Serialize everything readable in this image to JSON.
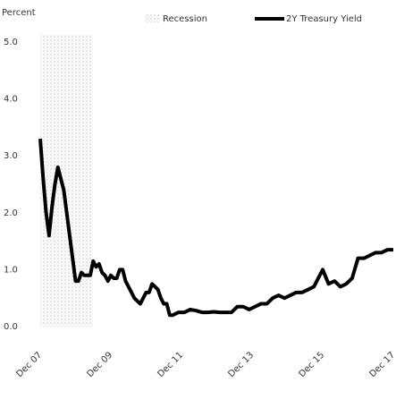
{
  "chart_data": {
    "type": "line",
    "y_label": "Percent",
    "recession": {
      "name": "Recession",
      "start": "2007-12",
      "end": "2009-06",
      "color": "#d0d0d0"
    },
    "x": [
      "2007-12",
      "2008-01",
      "2008-02",
      "2008-03",
      "2008-04",
      "2008-05",
      "2008-06",
      "2008-07",
      "2008-08",
      "2008-09",
      "2008-10",
      "2008-11",
      "2008-12",
      "2009-01",
      "2009-02",
      "2009-03",
      "2009-04",
      "2009-05",
      "2009-06",
      "2009-07",
      "2009-08",
      "2009-09",
      "2009-10",
      "2009-11",
      "2009-12",
      "2010-01",
      "2010-02",
      "2010-03",
      "2010-04",
      "2010-05",
      "2010-06",
      "2010-07",
      "2010-08",
      "2010-09",
      "2010-10",
      "2010-11",
      "2010-12",
      "2011-01",
      "2011-02",
      "2011-03",
      "2011-04",
      "2011-05",
      "2011-06",
      "2011-07",
      "2011-08",
      "2011-09",
      "2011-11",
      "2012-01",
      "2012-03",
      "2012-05",
      "2012-07",
      "2012-09",
      "2012-11",
      "2013-01",
      "2013-03",
      "2013-05",
      "2013-07",
      "2013-09",
      "2013-11",
      "2014-01",
      "2014-03",
      "2014-05",
      "2014-07",
      "2014-09",
      "2014-11",
      "2015-01",
      "2015-03",
      "2015-05",
      "2015-07",
      "2015-09",
      "2015-11",
      "2015-12",
      "2016-02",
      "2016-04",
      "2016-06",
      "2016-08",
      "2016-10",
      "2016-12",
      "2017-02",
      "2017-04",
      "2017-06",
      "2017-08",
      "2017-10",
      "2017-12"
    ],
    "series": [
      {
        "name": "2Y Treasury Yield",
        "color": "#000000",
        "values": [
          3.3,
          2.6,
          2.0,
          1.6,
          2.1,
          2.5,
          2.8,
          2.6,
          2.4,
          2.0,
          1.6,
          1.2,
          0.8,
          0.8,
          0.95,
          0.9,
          0.9,
          0.9,
          1.15,
          1.05,
          1.1,
          0.95,
          0.9,
          0.8,
          0.9,
          0.85,
          0.85,
          1.0,
          1.0,
          0.8,
          0.7,
          0.6,
          0.5,
          0.45,
          0.4,
          0.5,
          0.6,
          0.6,
          0.75,
          0.7,
          0.65,
          0.5,
          0.4,
          0.4,
          0.2,
          0.2,
          0.25,
          0.25,
          0.3,
          0.28,
          0.25,
          0.25,
          0.26,
          0.25,
          0.25,
          0.25,
          0.35,
          0.35,
          0.3,
          0.35,
          0.4,
          0.4,
          0.5,
          0.55,
          0.5,
          0.55,
          0.6,
          0.6,
          0.65,
          0.7,
          0.9,
          1.0,
          0.75,
          0.8,
          0.7,
          0.75,
          0.85,
          1.2,
          1.2,
          1.25,
          1.3,
          1.3,
          1.35,
          1.35
        ]
      }
    ],
    "xticks": [
      {
        "value": "2007-12",
        "label": "Dec 07"
      },
      {
        "value": "2009-12",
        "label": "Dec 09"
      },
      {
        "value": "2011-12",
        "label": "Dec 11"
      },
      {
        "value": "2013-12",
        "label": "Dec 13"
      },
      {
        "value": "2015-12",
        "label": "Dec 15"
      },
      {
        "value": "2017-12",
        "label": "Dec 17"
      }
    ],
    "ylim": [
      0,
      5
    ],
    "yticks": [
      {
        "value": 0,
        "label": "0.0"
      },
      {
        "value": 1,
        "label": "1.0"
      },
      {
        "value": 2,
        "label": "2.0"
      },
      {
        "value": 3,
        "label": "3.0"
      },
      {
        "value": 4,
        "label": "4.0"
      },
      {
        "value": 5,
        "label": "5.0"
      }
    ],
    "grid": false,
    "legend": "top"
  }
}
